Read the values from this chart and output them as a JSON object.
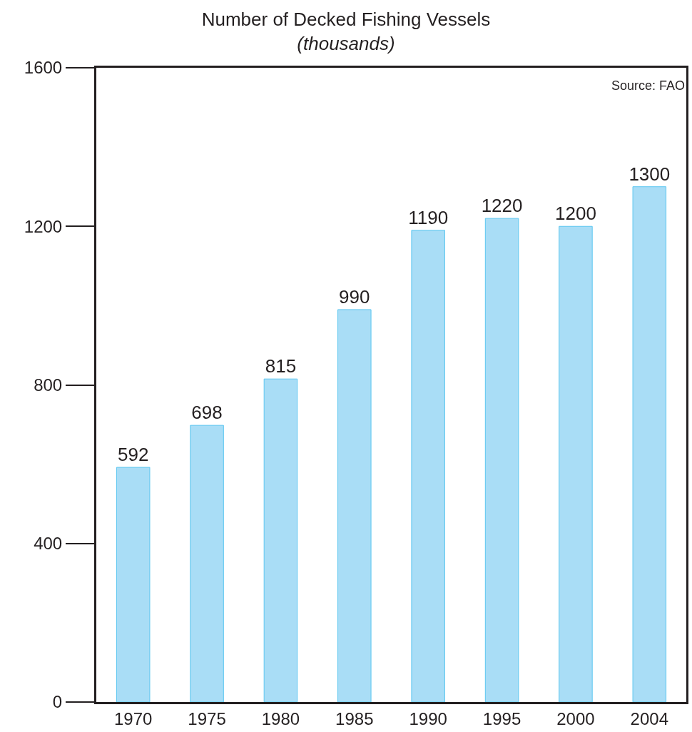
{
  "chart_data": {
    "type": "bar",
    "title": "Number of Decked Fishing Vessels",
    "subtitle": "(thousands)",
    "categories": [
      "1970",
      "1975",
      "1980",
      "1985",
      "1990",
      "1995",
      "2000",
      "2004"
    ],
    "values": [
      592,
      698,
      815,
      990,
      1190,
      1220,
      1200,
      1300
    ],
    "color": "#a9ddf6",
    "ylim": [
      0,
      1600
    ],
    "yticks": [
      0,
      400,
      800,
      1200,
      1600
    ],
    "data_labels": true,
    "annotations": [
      "Source: FAO"
    ]
  }
}
